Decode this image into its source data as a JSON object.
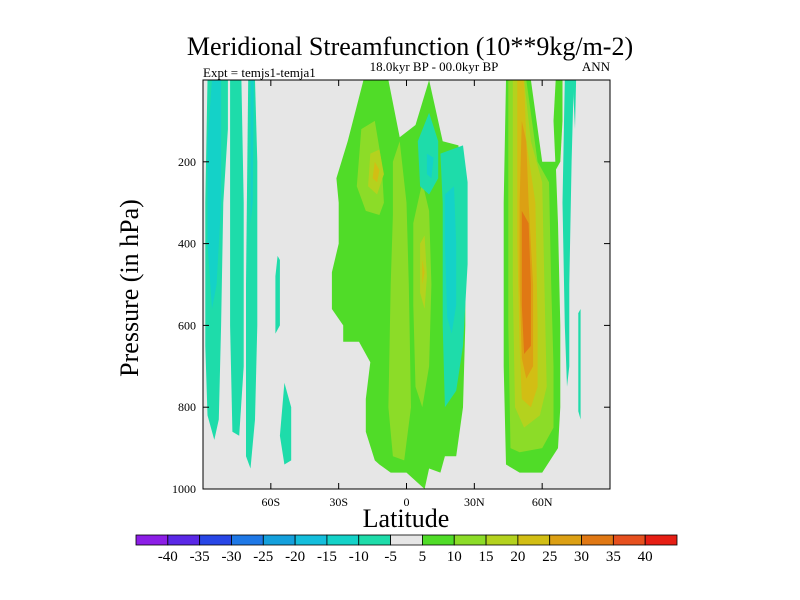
{
  "chart_data": {
    "type": "heatmap",
    "title": "Meridional Streamfunction (10**9kg/m-2)",
    "subtitle": "18.0kyr BP - 00.0kyr BP",
    "left_label": "Expt = temjs1-temja1",
    "right_label": "ANN",
    "xlabel": "Latitude",
    "ylabel": "Pressure (in hPa)",
    "xlim": [
      -90,
      90
    ],
    "ylim": [
      1000,
      0
    ],
    "x_ticks": [
      {
        "value": -60,
        "label": "60S"
      },
      {
        "value": -30,
        "label": "30S"
      },
      {
        "value": 0,
        "label": "0"
      },
      {
        "value": 30,
        "label": "30N"
      },
      {
        "value": 60,
        "label": "60N"
      }
    ],
    "y_ticks": [
      {
        "value": 200,
        "label": "200"
      },
      {
        "value": 400,
        "label": "400"
      },
      {
        "value": 600,
        "label": "600"
      },
      {
        "value": 800,
        "label": "800"
      },
      {
        "value": 1000,
        "label": "1000"
      }
    ],
    "background_color": "#e6e6e6",
    "colorbar": {
      "labels": [
        "-40",
        "-35",
        "-30",
        "-25",
        "-20",
        "-15",
        "-10",
        "-5",
        "5",
        "10",
        "15",
        "20",
        "25",
        "30",
        "35",
        "40"
      ],
      "colors": [
        "#8c1ee6",
        "#5a28e6",
        "#2846e6",
        "#1e78e6",
        "#14a0dc",
        "#14bedc",
        "#14d2c8",
        "#1edcaa",
        "#e6e6e6",
        "#50dc28",
        "#8cdc28",
        "#b4d21e",
        "#d2be14",
        "#dca014",
        "#e07814",
        "#e6501e",
        "#e61e14"
      ]
    },
    "regions": [
      {
        "level": -10,
        "color": "#1edcaa",
        "points": [
          [
            -88,
            0
          ],
          [
            -79,
            0
          ],
          [
            -79,
            120
          ],
          [
            -81,
            300
          ],
          [
            -82,
            600
          ],
          [
            -83,
            830
          ],
          [
            -85,
            880
          ],
          [
            -88,
            820
          ],
          [
            -89,
            650
          ],
          [
            -89,
            300
          ]
        ]
      },
      {
        "level": -15,
        "color": "#14d2c8",
        "points": [
          [
            -86,
            0
          ],
          [
            -82,
            0
          ],
          [
            -82,
            300
          ],
          [
            -84,
            500
          ],
          [
            -86,
            560
          ],
          [
            -88,
            400
          ],
          [
            -88,
            150
          ]
        ]
      },
      {
        "level": -10,
        "color": "#1edcaa",
        "points": [
          [
            -78,
            0
          ],
          [
            -73,
            0
          ],
          [
            -72,
            300
          ],
          [
            -72,
            700
          ],
          [
            -74,
            870
          ],
          [
            -77,
            860
          ],
          [
            -78,
            600
          ],
          [
            -78,
            200
          ]
        ]
      },
      {
        "level": -10,
        "color": "#1edcaa",
        "points": [
          [
            -70,
            0
          ],
          [
            -67,
            0
          ],
          [
            -66,
            200
          ],
          [
            -66,
            600
          ],
          [
            -67,
            830
          ],
          [
            -69,
            950
          ],
          [
            -71,
            920
          ],
          [
            -71,
            500
          ]
        ]
      },
      {
        "level": -15,
        "color": "#14d2c8",
        "points": [
          [
            -69,
            0
          ],
          [
            -67.5,
            0
          ],
          [
            -68,
            300
          ],
          [
            -69,
            350
          ]
        ]
      },
      {
        "level": -10,
        "color": "#1edcaa",
        "points": [
          [
            -57,
            430
          ],
          [
            -56,
            440
          ],
          [
            -56,
            600
          ],
          [
            -58,
            620
          ],
          [
            -58,
            480
          ]
        ]
      },
      {
        "level": -10,
        "color": "#1edcaa",
        "points": [
          [
            -54,
            740
          ],
          [
            -51,
            800
          ],
          [
            -51,
            930
          ],
          [
            -54,
            940
          ],
          [
            -56,
            870
          ]
        ]
      },
      {
        "level": 5,
        "color": "#50dc28",
        "points": [
          [
            -31,
            240
          ],
          [
            -26,
            150
          ],
          [
            -19,
            0
          ],
          [
            -8,
            0
          ],
          [
            -3,
            140
          ],
          [
            4,
            110
          ],
          [
            10,
            0
          ],
          [
            16,
            150
          ],
          [
            23,
            160
          ],
          [
            23,
            300
          ],
          [
            26,
            450
          ],
          [
            26,
            600
          ],
          [
            25,
            800
          ],
          [
            22,
            920
          ],
          [
            17,
            920
          ],
          [
            15,
            960
          ],
          [
            10,
            950
          ],
          [
            8,
            1000
          ],
          [
            0,
            960
          ],
          [
            -7,
            960
          ],
          [
            -12,
            940
          ],
          [
            -14,
            930
          ],
          [
            -18,
            860
          ],
          [
            -18,
            780
          ],
          [
            -16,
            690
          ],
          [
            -21,
            640
          ],
          [
            -28,
            640
          ],
          [
            -28,
            600
          ],
          [
            -33,
            560
          ],
          [
            -33,
            470
          ],
          [
            -30,
            400
          ],
          [
            -30,
            300
          ]
        ]
      },
      {
        "level": 10,
        "color": "#8cdc28",
        "points": [
          [
            -20,
            120
          ],
          [
            -14,
            100
          ],
          [
            -11,
            200
          ],
          [
            -10,
            300
          ],
          [
            -12,
            330
          ],
          [
            -18,
            320
          ],
          [
            -22,
            260
          ]
        ]
      },
      {
        "level": 15,
        "color": "#b4d21e",
        "points": [
          [
            -16,
            180
          ],
          [
            -12,
            170
          ],
          [
            -10,
            230
          ],
          [
            -13,
            280
          ],
          [
            -17,
            260
          ]
        ]
      },
      {
        "level": 20,
        "color": "#d2be14",
        "points": [
          [
            -14,
            200
          ],
          [
            -12,
            220
          ],
          [
            -13,
            250
          ],
          [
            -15,
            240
          ]
        ]
      },
      {
        "level": 10,
        "color": "#8cdc28",
        "points": [
          [
            -6,
            200
          ],
          [
            -3,
            150
          ],
          [
            0,
            300
          ],
          [
            1,
            500
          ],
          [
            2,
            800
          ],
          [
            -1,
            930
          ],
          [
            -6,
            920
          ],
          [
            -8,
            800
          ],
          [
            -7,
            500
          ],
          [
            -6,
            330
          ]
        ]
      },
      {
        "level": 10,
        "color": "#8cdc28",
        "points": [
          [
            3,
            350
          ],
          [
            7,
            250
          ],
          [
            10,
            320
          ],
          [
            11,
            500
          ],
          [
            10,
            700
          ],
          [
            7,
            800
          ],
          [
            4,
            750
          ],
          [
            3,
            550
          ]
        ]
      },
      {
        "level": 15,
        "color": "#b4d21e",
        "points": [
          [
            6,
            400
          ],
          [
            8,
            380
          ],
          [
            9,
            480
          ],
          [
            8,
            560
          ],
          [
            6,
            520
          ]
        ]
      },
      {
        "level": 20,
        "color": "#d2be14",
        "points": [
          [
            7,
            440
          ],
          [
            8,
            470
          ],
          [
            7,
            500
          ]
        ]
      },
      {
        "level": -10,
        "color": "#1edcaa",
        "points": [
          [
            5,
            150
          ],
          [
            10,
            80
          ],
          [
            14,
            150
          ],
          [
            14,
            240
          ],
          [
            10,
            280
          ],
          [
            6,
            260
          ]
        ]
      },
      {
        "level": -15,
        "color": "#14d2c8",
        "points": [
          [
            9,
            180
          ],
          [
            12,
            190
          ],
          [
            11,
            240
          ],
          [
            9,
            230
          ]
        ]
      },
      {
        "level": -10,
        "color": "#1edcaa",
        "points": [
          [
            15,
            180
          ],
          [
            25,
            160
          ],
          [
            27,
            250
          ],
          [
            27,
            450
          ],
          [
            25,
            650
          ],
          [
            22,
            760
          ],
          [
            17,
            800
          ],
          [
            16,
            600
          ],
          [
            16,
            300
          ]
        ]
      },
      {
        "level": -15,
        "color": "#14d2c8",
        "points": [
          [
            17,
            280
          ],
          [
            21,
            260
          ],
          [
            22,
            400
          ],
          [
            22,
            550
          ],
          [
            20,
            620
          ],
          [
            18,
            580
          ],
          [
            17,
            400
          ]
        ]
      },
      {
        "level": 5,
        "color": "#50dc28",
        "points": [
          [
            44,
            0
          ],
          [
            55,
            0
          ],
          [
            60,
            200
          ],
          [
            66,
            200
          ],
          [
            67,
            350
          ],
          [
            68,
            600
          ],
          [
            68,
            800
          ],
          [
            67,
            900
          ],
          [
            60,
            960
          ],
          [
            50,
            960
          ],
          [
            44,
            940
          ],
          [
            43,
            700
          ],
          [
            43,
            300
          ]
        ]
      },
      {
        "level": 10,
        "color": "#8cdc28",
        "points": [
          [
            45,
            0
          ],
          [
            53,
            0
          ],
          [
            58,
            200
          ],
          [
            63,
            250
          ],
          [
            64,
            500
          ],
          [
            65,
            700
          ],
          [
            65,
            850
          ],
          [
            60,
            900
          ],
          [
            50,
            910
          ],
          [
            46,
            900
          ],
          [
            45,
            600
          ],
          [
            45,
            300
          ]
        ]
      },
      {
        "level": 15,
        "color": "#b4d21e",
        "points": [
          [
            47,
            0
          ],
          [
            52,
            0
          ],
          [
            55,
            150
          ],
          [
            60,
            250
          ],
          [
            61,
            500
          ],
          [
            62,
            750
          ],
          [
            59,
            820
          ],
          [
            52,
            850
          ],
          [
            48,
            800
          ],
          [
            47,
            500
          ],
          [
            47,
            250
          ]
        ]
      },
      {
        "level": 20,
        "color": "#d2be14",
        "points": [
          [
            49,
            0
          ],
          [
            52,
            0
          ],
          [
            53,
            150
          ],
          [
            57,
            300
          ],
          [
            58,
            600
          ],
          [
            58,
            750
          ],
          [
            55,
            800
          ],
          [
            51,
            780
          ],
          [
            50,
            650
          ],
          [
            49,
            400
          ],
          [
            49,
            200
          ]
        ]
      },
      {
        "level": 25,
        "color": "#dca014",
        "points": [
          [
            51,
            100
          ],
          [
            53,
            150
          ],
          [
            54,
            300
          ],
          [
            56,
            500
          ],
          [
            56,
            700
          ],
          [
            53,
            730
          ],
          [
            51,
            680
          ],
          [
            50,
            500
          ],
          [
            50,
            300
          ]
        ]
      },
      {
        "level": 30,
        "color": "#e07814",
        "points": [
          [
            51,
            320
          ],
          [
            54,
            350
          ],
          [
            55,
            500
          ],
          [
            55,
            650
          ],
          [
            52,
            670
          ],
          [
            51,
            550
          ]
        ]
      },
      {
        "level": 5,
        "color": "#50dc28",
        "points": [
          [
            66,
            0
          ],
          [
            69,
            0
          ],
          [
            69,
            100
          ],
          [
            68,
            200
          ],
          [
            66,
            220
          ],
          [
            65,
            100
          ]
        ]
      },
      {
        "level": -10,
        "color": "#1edcaa",
        "points": [
          [
            70,
            0
          ],
          [
            74,
            0
          ],
          [
            73,
            200
          ],
          [
            72,
            500
          ],
          [
            72,
            700
          ],
          [
            71,
            750
          ],
          [
            70,
            600
          ],
          [
            69,
            300
          ]
        ]
      },
      {
        "level": -10,
        "color": "#1edcaa",
        "points": [
          [
            76,
            570
          ],
          [
            77,
            560
          ],
          [
            77,
            830
          ],
          [
            76,
            810
          ]
        ]
      },
      {
        "level": -10,
        "color": "#1edcaa",
        "points": [
          [
            73.5,
            0
          ],
          [
            75,
            0
          ],
          [
            74.5,
            120
          ]
        ]
      }
    ]
  }
}
